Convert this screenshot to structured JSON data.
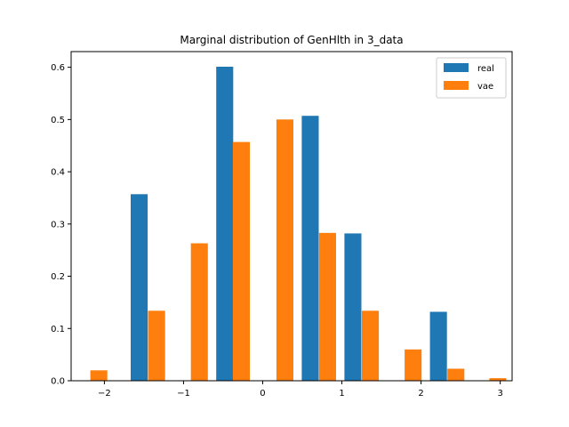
{
  "chart_data": {
    "type": "bar",
    "title": "Marginal distribution of GenHlth in 3_data",
    "xlabel": "",
    "ylabel": "",
    "xlim": [
      -2.42,
      3.15
    ],
    "ylim": [
      0,
      0.63
    ],
    "xticks": [
      -2,
      -1,
      0,
      1,
      2,
      3
    ],
    "xtick_labels": [
      "−2",
      "−1",
      "0",
      "1",
      "2",
      "3"
    ],
    "yticks": [
      0.0,
      0.1,
      0.2,
      0.3,
      0.4,
      0.5,
      0.6
    ],
    "ytick_labels": [
      "0.0",
      "0.1",
      "0.2",
      "0.3",
      "0.4",
      "0.5",
      "0.6"
    ],
    "bar_width": 0.215,
    "legend_position": "top-right",
    "series": [
      {
        "name": "real",
        "color": "#1f77b4",
        "x": [
          -1.56,
          -1.02,
          -0.48,
          0.06,
          0.6,
          1.14,
          1.68,
          2.22
        ],
        "values": [
          0.357,
          0.0,
          0.601,
          0.0,
          0.507,
          0.282,
          0.0,
          0.132
        ]
      },
      {
        "name": "vae",
        "color": "#ff7f0e",
        "x": [
          -2.07,
          -1.34,
          -0.8,
          -0.27,
          0.28,
          0.82,
          1.36,
          1.9,
          2.44,
          2.97
        ],
        "values": [
          0.02,
          0.134,
          0.263,
          0.457,
          0.5,
          0.283,
          0.134,
          0.06,
          0.023,
          0.005
        ]
      }
    ]
  }
}
